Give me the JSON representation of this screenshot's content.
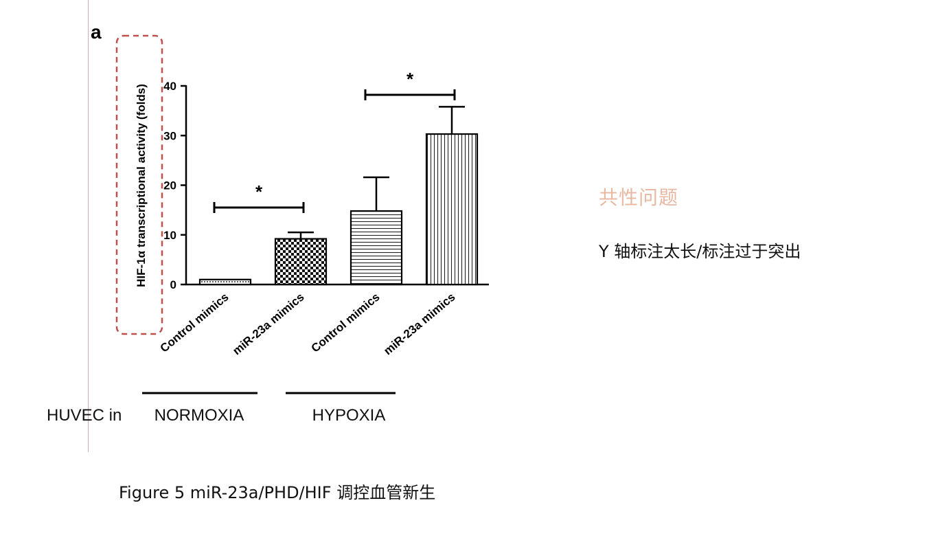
{
  "chart_data": {
    "type": "bar",
    "panel_label": "a",
    "ylabel": "HIF-1α transcriptional activity (folds)",
    "ylim": [
      0,
      40
    ],
    "yticks": [
      0,
      10,
      20,
      30,
      40
    ],
    "categories": [
      "Control mimics",
      "miR-23a mimics",
      "Control mimics",
      "miR-23a mimics"
    ],
    "values": [
      1,
      9.2,
      14.8,
      30.3
    ],
    "errors": [
      0,
      1.3,
      6.8,
      5.5
    ],
    "patterns": [
      "dots",
      "checker",
      "hlines",
      "vlines"
    ],
    "groups": [
      {
        "label": "NORMOXIA",
        "members": [
          0,
          1
        ]
      },
      {
        "label": "HYPOXIA",
        "members": [
          2,
          3
        ]
      }
    ],
    "group_prefix": "HUVEC in",
    "significance": [
      {
        "from": 0,
        "to": 1,
        "label": "*",
        "y": 15.5
      },
      {
        "from": 2,
        "to": 3,
        "label": "*",
        "y": 38.2
      }
    ],
    "highlight": {
      "target": "y-axis-label",
      "style": "dashed",
      "color": "#c0504d"
    }
  },
  "annotation": {
    "heading": "共性问题",
    "note": "Y 轴标注太长/标注过于突出"
  },
  "caption": "Figure 5 miR-23a/PHD/HIF 调控血管新生"
}
